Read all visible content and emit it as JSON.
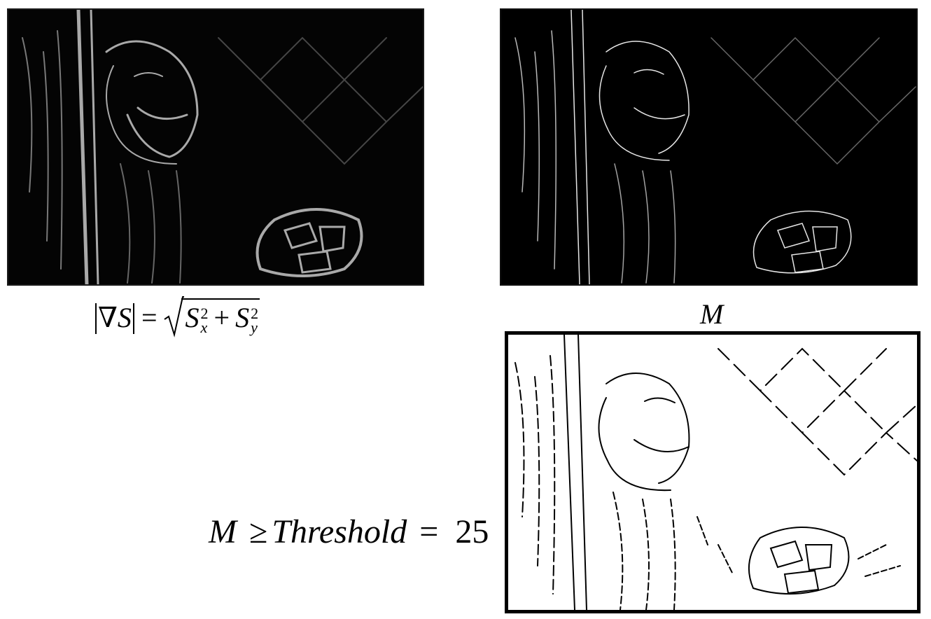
{
  "panels": {
    "gradient_magnitude": {
      "background": "#040404",
      "edge_color": "#bdbdbd"
    },
    "non_max_suppressed": {
      "background": "#000000",
      "edge_color": "#e6e6e6"
    },
    "thresholded": {
      "background": "#ffffff",
      "edge_color": "#000000"
    }
  },
  "formulas": {
    "gradient": {
      "lhs": "∇S",
      "equals": "=",
      "term1_base": "S",
      "term1_sup": "2",
      "term1_sub": "x",
      "plus": "+",
      "term2_base": "S",
      "term2_sup": "2",
      "term2_sub": "y"
    },
    "suppressed_label": "M",
    "threshold": {
      "var": "M",
      "geq": "≥",
      "name": "Threshold",
      "equals": "=",
      "value": "25"
    }
  }
}
